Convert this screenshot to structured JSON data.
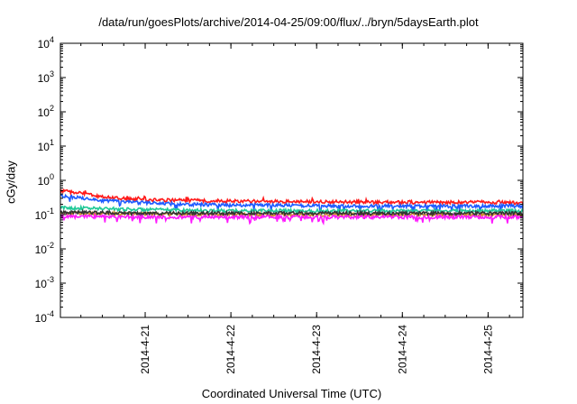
{
  "chart_data": {
    "type": "line",
    "title": "/data/run/goesPlots/archive/2014-04-25/09:00/flux/../bryn/5daysEarth.plot",
    "xlabel": "Coordinated Universal Time (UTC)",
    "ylabel": "cGy/day",
    "yscale": "log",
    "ylim": [
      0.0001,
      10000
    ],
    "yticks": [
      {
        "value": 0.0001,
        "base": "10",
        "exp": "-4"
      },
      {
        "value": 0.001,
        "base": "10",
        "exp": "-3"
      },
      {
        "value": 0.01,
        "base": "10",
        "exp": "-2"
      },
      {
        "value": 0.1,
        "base": "10",
        "exp": "-1"
      },
      {
        "value": 1,
        "base": "10",
        "exp": "0"
      },
      {
        "value": 10,
        "base": "10",
        "exp": "1"
      },
      {
        "value": 100,
        "base": "10",
        "exp": "2"
      },
      {
        "value": 1000,
        "base": "10",
        "exp": "3"
      },
      {
        "value": 10000,
        "base": "10",
        "exp": "4"
      }
    ],
    "xlim": [
      "2014-04-20 00:16",
      "2014-04-25 09:45"
    ],
    "xticks": [
      "2014-4-21",
      "2014-4-22",
      "2014-4-23",
      "2014-4-24",
      "2014-4-25"
    ],
    "grid": false,
    "series": [
      {
        "color": "#ff1a1a",
        "values": [
          [
            0,
            0.5
          ],
          [
            0.25,
            0.42
          ],
          [
            0.5,
            0.32
          ],
          [
            1,
            0.27
          ],
          [
            1.5,
            0.26
          ],
          [
            2,
            0.25
          ],
          [
            2.5,
            0.24
          ],
          [
            3,
            0.24
          ],
          [
            3.5,
            0.23
          ],
          [
            4,
            0.23
          ],
          [
            4.5,
            0.23
          ],
          [
            5,
            0.23
          ],
          [
            5.4,
            0.22
          ]
        ]
      },
      {
        "color": "#1e5bff",
        "values": [
          [
            0,
            0.35
          ],
          [
            0.25,
            0.31
          ],
          [
            0.5,
            0.26
          ],
          [
            1,
            0.22
          ],
          [
            1.5,
            0.2
          ],
          [
            2,
            0.19
          ],
          [
            2.5,
            0.19
          ],
          [
            3,
            0.18
          ],
          [
            3.5,
            0.18
          ],
          [
            4,
            0.18
          ],
          [
            4.5,
            0.18
          ],
          [
            5,
            0.18
          ],
          [
            5.4,
            0.18
          ]
        ]
      },
      {
        "color": "#20c997",
        "values": [
          [
            0,
            0.16
          ],
          [
            0.5,
            0.15
          ],
          [
            1,
            0.14
          ],
          [
            2,
            0.13
          ],
          [
            3,
            0.13
          ],
          [
            4,
            0.13
          ],
          [
            5,
            0.13
          ],
          [
            5.4,
            0.13
          ]
        ]
      },
      {
        "color": "#d08a2a",
        "values": [
          [
            0,
            0.11
          ],
          [
            1,
            0.105
          ],
          [
            2,
            0.1
          ],
          [
            3,
            0.1
          ],
          [
            4,
            0.1
          ],
          [
            5,
            0.1
          ],
          [
            5.4,
            0.1
          ]
        ]
      },
      {
        "color": "#333333",
        "values": [
          [
            0,
            0.12
          ],
          [
            1,
            0.11
          ],
          [
            2,
            0.11
          ],
          [
            3,
            0.11
          ],
          [
            4,
            0.11
          ],
          [
            5,
            0.11
          ],
          [
            5.4,
            0.11
          ]
        ]
      },
      {
        "color": "#ff1aff",
        "values": [
          [
            0,
            0.09
          ],
          [
            1,
            0.085
          ],
          [
            2,
            0.085
          ],
          [
            3,
            0.085
          ],
          [
            4,
            0.085
          ],
          [
            5,
            0.085
          ],
          [
            5.4,
            0.085
          ]
        ]
      }
    ]
  }
}
